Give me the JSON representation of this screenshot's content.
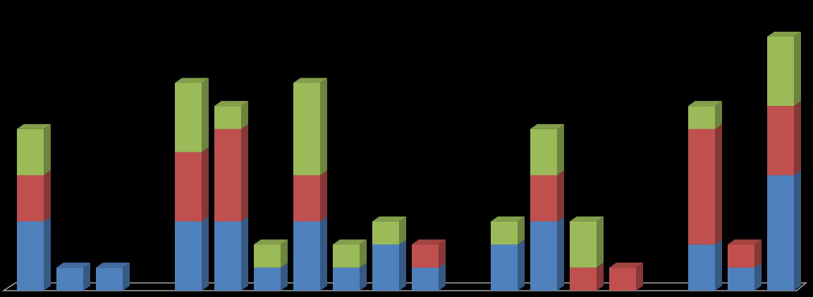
{
  "chart_data": {
    "type": "bar3d-stacked",
    "categories": [
      null,
      null,
      null,
      null,
      null,
      null,
      null,
      null,
      null,
      null,
      null,
      null,
      null,
      null,
      null,
      null,
      null,
      null,
      null,
      null
    ],
    "series": [
      {
        "color": "#4f81bd",
        "values": [
          3,
          1,
          1,
          0,
          3,
          3,
          1,
          3,
          1,
          2,
          1,
          0,
          2,
          3,
          0,
          0,
          0,
          2,
          1,
          5
        ]
      },
      {
        "color": "#c0504d",
        "values": [
          2,
          0,
          0,
          0,
          3,
          4,
          0,
          2,
          0,
          0,
          1,
          0,
          0,
          2,
          1,
          1,
          0,
          5,
          1,
          3
        ]
      },
      {
        "color": "#9bbb59",
        "values": [
          2,
          0,
          0,
          0,
          3,
          1,
          1,
          4,
          1,
          1,
          0,
          0,
          1,
          2,
          2,
          0,
          0,
          1,
          0,
          3
        ]
      }
    ],
    "ylim": [
      0,
      11
    ]
  }
}
